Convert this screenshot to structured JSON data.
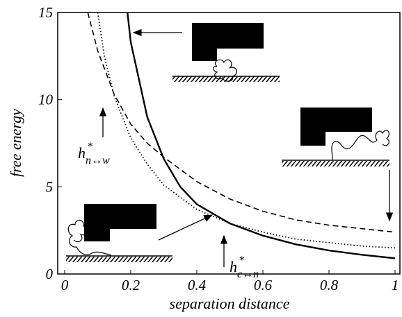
{
  "chart_data": {
    "type": "line",
    "xlabel": "separation distance",
    "ylabel": "free energy",
    "xlim": [
      0,
      1
    ],
    "ylim": [
      0,
      15
    ],
    "xticks": [
      0,
      0.2,
      0.4,
      0.6,
      0.8,
      1
    ],
    "yticks": [
      0,
      5,
      10,
      15
    ],
    "series": [
      {
        "color": "#000",
        "style": "solid",
        "x": [
          0.19,
          0.2,
          0.25,
          0.3,
          0.35,
          0.4,
          0.5,
          0.6,
          0.7,
          0.8,
          0.9,
          1.0
        ],
        "values": [
          15,
          13.3,
          9.0,
          6.6,
          5.0,
          4.0,
          2.9,
          2.2,
          1.7,
          1.35,
          1.1,
          0.9
        ]
      },
      {
        "color": "#000",
        "style": "dashed",
        "x": [
          0.07,
          0.1,
          0.15,
          0.2,
          0.25,
          0.3,
          0.4,
          0.5,
          0.6,
          0.7,
          0.8,
          0.9,
          1.0
        ],
        "values": [
          15,
          12.8,
          10.3,
          8.6,
          7.5,
          6.7,
          5.3,
          4.3,
          3.6,
          3.1,
          2.8,
          2.6,
          2.4
        ]
      },
      {
        "color": "#000",
        "style": "dotted",
        "x": [
          0.1,
          0.12,
          0.15,
          0.2,
          0.25,
          0.3,
          0.4,
          0.5,
          0.6,
          0.7,
          0.8,
          0.9,
          1.0
        ],
        "values": [
          15,
          12.5,
          10.2,
          7.8,
          6.3,
          5.1,
          3.7,
          2.9,
          2.4,
          2.0,
          1.8,
          1.6,
          1.5
        ]
      }
    ],
    "annotations": [
      {
        "text": "h",
        "sup": "*",
        "sub": "n↔w"
      },
      {
        "text": "h",
        "sup": "*",
        "sub": "c↔n"
      }
    ]
  }
}
